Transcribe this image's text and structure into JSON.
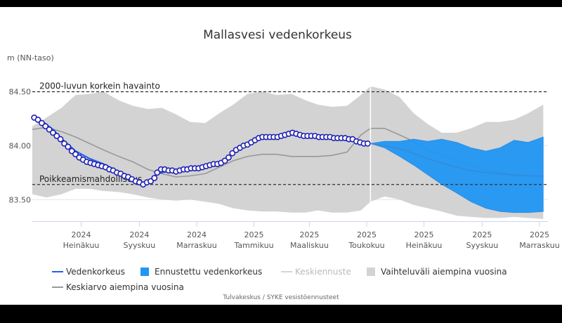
{
  "chart_data": {
    "type": "area",
    "title": "Mallasvesi vedenkorkeus",
    "ylabel": "m (NN-taso)",
    "ylim": [
      83.3,
      84.66
    ],
    "y_ticks": [
      "84.50",
      "84.00",
      "83.50"
    ],
    "x_ticks": [
      {
        "year": "2024",
        "month": "Heinäkuu"
      },
      {
        "year": "2024",
        "month": "Syyskuu"
      },
      {
        "year": "2024",
        "month": "Marraskuu"
      },
      {
        "year": "2025",
        "month": "Tammikuu"
      },
      {
        "year": "2025",
        "month": "Maaliskuu"
      },
      {
        "year": "2025",
        "month": "Toukokuu"
      },
      {
        "year": "2025",
        "month": "Heinäkuu"
      },
      {
        "year": "2025",
        "month": "Syyskuu"
      },
      {
        "year": "2025",
        "month": "Marraskuu"
      }
    ],
    "x_ticks_date": [
      "2024-07-01",
      "2024-09-01",
      "2024-11-01",
      "2025-01-01",
      "2025-03-01",
      "2025-05-01",
      "2025-07-01",
      "2025-09-01",
      "2025-11-01"
    ],
    "x_range": [
      "2024-05-10",
      "2025-11-10"
    ],
    "today": "2025-05-05",
    "reference_lines": [
      {
        "label": "2000-luvun korkein havainto",
        "value": 84.5
      },
      {
        "label": "Poikkeamismahdollisuus",
        "value": 83.64
      }
    ],
    "grid": true,
    "legend_position": "bottom",
    "series": [
      {
        "name": "Vaihteluväli aiempina vuosina",
        "kind": "range",
        "color": "#d3d3d3",
        "data": [
          [
            "2024-05-10",
            83.55,
            84.18
          ],
          [
            "2024-05-25",
            83.52,
            84.26
          ],
          [
            "2024-06-10",
            83.55,
            84.35
          ],
          [
            "2024-06-25",
            83.6,
            84.47
          ],
          [
            "2024-07-10",
            83.6,
            84.48
          ],
          [
            "2024-07-25",
            83.58,
            84.5
          ],
          [
            "2024-08-10",
            83.57,
            84.42
          ],
          [
            "2024-08-25",
            83.55,
            84.37
          ],
          [
            "2024-09-10",
            83.52,
            84.34
          ],
          [
            "2024-09-25",
            83.5,
            84.35
          ],
          [
            "2024-10-10",
            83.49,
            84.29
          ],
          [
            "2024-10-25",
            83.5,
            84.22
          ],
          [
            "2024-11-10",
            83.48,
            84.21
          ],
          [
            "2024-11-25",
            83.46,
            84.3
          ],
          [
            "2024-12-10",
            83.42,
            84.38
          ],
          [
            "2024-12-25",
            83.4,
            84.48
          ],
          [
            "2025-01-10",
            83.39,
            84.5
          ],
          [
            "2025-01-25",
            83.39,
            84.47
          ],
          [
            "2025-02-10",
            83.38,
            84.48
          ],
          [
            "2025-02-25",
            83.38,
            84.42
          ],
          [
            "2025-03-10",
            83.4,
            84.38
          ],
          [
            "2025-03-25",
            83.38,
            84.36
          ],
          [
            "2025-04-10",
            83.38,
            84.37
          ],
          [
            "2025-04-25",
            83.4,
            84.47
          ],
          [
            "2025-05-05",
            83.48,
            84.55
          ],
          [
            "2025-05-20",
            83.53,
            84.52
          ],
          [
            "2025-06-05",
            83.5,
            84.45
          ],
          [
            "2025-06-20",
            83.45,
            84.3
          ],
          [
            "2025-07-05",
            83.42,
            84.2
          ],
          [
            "2025-07-20",
            83.39,
            84.12
          ],
          [
            "2025-08-05",
            83.35,
            84.12
          ],
          [
            "2025-08-20",
            83.34,
            84.16
          ],
          [
            "2025-09-05",
            83.33,
            84.22
          ],
          [
            "2025-09-20",
            83.33,
            84.22
          ],
          [
            "2025-10-05",
            83.34,
            84.24
          ],
          [
            "2025-10-20",
            83.33,
            84.3
          ],
          [
            "2025-11-05",
            83.32,
            84.38
          ]
        ]
      },
      {
        "name": "Keskiarvo aiempina vuosina",
        "kind": "line",
        "color": "#999999",
        "data": [
          [
            "2024-05-10",
            84.15
          ],
          [
            "2024-05-25",
            84.17
          ],
          [
            "2024-06-10",
            84.13
          ],
          [
            "2024-06-25",
            84.08
          ],
          [
            "2024-07-10",
            84.02
          ],
          [
            "2024-07-25",
            83.96
          ],
          [
            "2024-08-10",
            83.9
          ],
          [
            "2024-08-25",
            83.85
          ],
          [
            "2024-09-10",
            83.78
          ],
          [
            "2024-09-25",
            83.74
          ],
          [
            "2024-10-10",
            83.71
          ],
          [
            "2024-10-25",
            83.72
          ],
          [
            "2024-11-10",
            83.74
          ],
          [
            "2024-11-25",
            83.8
          ],
          [
            "2024-12-10",
            83.86
          ],
          [
            "2024-12-25",
            83.9
          ],
          [
            "2025-01-10",
            83.92
          ],
          [
            "2025-01-25",
            83.92
          ],
          [
            "2025-02-10",
            83.9
          ],
          [
            "2025-02-25",
            83.9
          ],
          [
            "2025-03-10",
            83.9
          ],
          [
            "2025-03-25",
            83.91
          ],
          [
            "2025-04-10",
            83.94
          ],
          [
            "2025-04-25",
            84.1
          ],
          [
            "2025-05-05",
            84.16
          ],
          [
            "2025-05-20",
            84.16
          ],
          [
            "2025-06-05",
            84.1
          ],
          [
            "2025-06-20",
            84.04
          ],
          [
            "2025-07-05",
            83.96
          ],
          [
            "2025-07-20",
            83.92
          ],
          [
            "2025-08-05",
            83.86
          ],
          [
            "2025-08-20",
            83.82
          ],
          [
            "2025-09-05",
            83.77
          ],
          [
            "2025-09-20",
            83.75
          ],
          [
            "2025-10-05",
            83.72
          ],
          [
            "2025-10-20",
            83.72
          ],
          [
            "2025-11-05",
            83.71
          ]
        ]
      },
      {
        "name": "Ennustettu vedenkorkeus",
        "kind": "range",
        "color": "#2196f3",
        "data": [
          [
            "2025-05-05",
            84.02,
            84.02
          ],
          [
            "2025-05-20",
            83.98,
            84.04
          ],
          [
            "2025-06-05",
            83.9,
            84.04
          ],
          [
            "2025-06-20",
            83.82,
            84.06
          ],
          [
            "2025-07-05",
            83.73,
            84.04
          ],
          [
            "2025-07-20",
            83.64,
            84.06
          ],
          [
            "2025-08-05",
            83.56,
            84.03
          ],
          [
            "2025-08-20",
            83.48,
            83.98
          ],
          [
            "2025-09-05",
            83.42,
            83.95
          ],
          [
            "2025-09-20",
            83.39,
            83.98
          ],
          [
            "2025-10-05",
            83.38,
            84.05
          ],
          [
            "2025-10-20",
            83.38,
            84.03
          ],
          [
            "2025-11-05",
            83.39,
            84.08
          ]
        ]
      },
      {
        "name": "Keskiennuste",
        "kind": "line",
        "color": "#bbbbbb",
        "data": [
          [
            "2025-05-05",
            84.02
          ],
          [
            "2025-05-20",
            84.0
          ],
          [
            "2025-06-05",
            83.97
          ],
          [
            "2025-06-20",
            83.93
          ],
          [
            "2025-07-05",
            83.88
          ],
          [
            "2025-07-20",
            83.84
          ],
          [
            "2025-08-05",
            83.8
          ],
          [
            "2025-08-20",
            83.77
          ],
          [
            "2025-09-05",
            83.75
          ],
          [
            "2025-09-20",
            83.74
          ],
          [
            "2025-10-05",
            83.73
          ],
          [
            "2025-10-20",
            83.72
          ],
          [
            "2025-11-05",
            83.72
          ]
        ]
      },
      {
        "name": "Vedenkorkeus",
        "kind": "line",
        "color": "#1e63e9",
        "data": [
          [
            "2024-05-12",
            84.26
          ],
          [
            "2024-05-20",
            84.23
          ],
          [
            "2024-06-01",
            84.15
          ],
          [
            "2024-06-12",
            84.05
          ],
          [
            "2024-06-25",
            83.95
          ],
          [
            "2024-07-10",
            83.88
          ],
          [
            "2024-07-25",
            83.83
          ],
          [
            "2024-08-10",
            83.76
          ],
          [
            "2024-08-25",
            83.7
          ],
          [
            "2024-09-05",
            83.65
          ],
          [
            "2024-09-15",
            83.68
          ],
          [
            "2024-09-20",
            83.74
          ],
          [
            "2024-10-05",
            83.77
          ],
          [
            "2024-10-20",
            83.77
          ],
          [
            "2024-11-05",
            83.79
          ],
          [
            "2024-11-20",
            83.82
          ],
          [
            "2024-12-05",
            83.9
          ],
          [
            "2024-12-20",
            84.0
          ],
          [
            "2025-01-05",
            84.07
          ],
          [
            "2025-01-20",
            84.08
          ],
          [
            "2025-02-05",
            84.1
          ],
          [
            "2025-02-20",
            84.1
          ],
          [
            "2025-03-05",
            84.09
          ],
          [
            "2025-03-20",
            84.08
          ],
          [
            "2025-04-05",
            84.07
          ],
          [
            "2025-04-20",
            84.05
          ],
          [
            "2025-05-05",
            84.02
          ]
        ]
      },
      {
        "name": "Havainnot",
        "kind": "points",
        "color": "#1f1fb4",
        "data": [
          [
            "2024-05-12",
            84.26
          ],
          [
            "2024-05-16",
            84.24
          ],
          [
            "2024-05-20",
            84.21
          ],
          [
            "2024-05-24",
            84.18
          ],
          [
            "2024-05-28",
            84.15
          ],
          [
            "2024-06-01",
            84.12
          ],
          [
            "2024-06-05",
            84.09
          ],
          [
            "2024-06-09",
            84.06
          ],
          [
            "2024-06-13",
            84.02
          ],
          [
            "2024-06-17",
            83.99
          ],
          [
            "2024-06-21",
            83.95
          ],
          [
            "2024-06-25",
            83.92
          ],
          [
            "2024-06-29",
            83.89
          ],
          [
            "2024-07-03",
            83.87
          ],
          [
            "2024-07-07",
            83.85
          ],
          [
            "2024-07-11",
            83.84
          ],
          [
            "2024-07-15",
            83.83
          ],
          [
            "2024-07-19",
            83.82
          ],
          [
            "2024-07-23",
            83.81
          ],
          [
            "2024-07-27",
            83.8
          ],
          [
            "2024-07-31",
            83.78
          ],
          [
            "2024-08-04",
            83.77
          ],
          [
            "2024-08-08",
            83.75
          ],
          [
            "2024-08-12",
            83.74
          ],
          [
            "2024-08-16",
            83.72
          ],
          [
            "2024-08-20",
            83.71
          ],
          [
            "2024-08-24",
            83.69
          ],
          [
            "2024-08-28",
            83.67
          ],
          [
            "2024-09-01",
            83.66
          ],
          [
            "2024-09-05",
            83.64
          ],
          [
            "2024-09-09",
            83.66
          ],
          [
            "2024-09-13",
            83.67
          ],
          [
            "2024-09-17",
            83.7
          ],
          [
            "2024-09-20",
            83.75
          ],
          [
            "2024-09-24",
            83.78
          ],
          [
            "2024-09-28",
            83.78
          ],
          [
            "2024-10-02",
            83.77
          ],
          [
            "2024-10-06",
            83.77
          ],
          [
            "2024-10-10",
            83.76
          ],
          [
            "2024-10-14",
            83.77
          ],
          [
            "2024-10-18",
            83.78
          ],
          [
            "2024-10-22",
            83.78
          ],
          [
            "2024-10-26",
            83.79
          ],
          [
            "2024-10-30",
            83.79
          ],
          [
            "2024-11-03",
            83.79
          ],
          [
            "2024-11-07",
            83.8
          ],
          [
            "2024-11-11",
            83.81
          ],
          [
            "2024-11-15",
            83.82
          ],
          [
            "2024-11-19",
            83.83
          ],
          [
            "2024-11-23",
            83.83
          ],
          [
            "2024-11-27",
            83.84
          ],
          [
            "2024-12-01",
            83.86
          ],
          [
            "2024-12-05",
            83.89
          ],
          [
            "2024-12-09",
            83.93
          ],
          [
            "2024-12-13",
            83.96
          ],
          [
            "2024-12-17",
            83.98
          ],
          [
            "2024-12-21",
            84.0
          ],
          [
            "2024-12-25",
            84.01
          ],
          [
            "2024-12-29",
            84.03
          ],
          [
            "2025-01-02",
            84.05
          ],
          [
            "2025-01-06",
            84.07
          ],
          [
            "2025-01-10",
            84.08
          ],
          [
            "2025-01-14",
            84.08
          ],
          [
            "2025-01-18",
            84.08
          ],
          [
            "2025-01-22",
            84.08
          ],
          [
            "2025-01-26",
            84.08
          ],
          [
            "2025-01-30",
            84.09
          ],
          [
            "2025-02-03",
            84.1
          ],
          [
            "2025-02-07",
            84.11
          ],
          [
            "2025-02-11",
            84.12
          ],
          [
            "2025-02-15",
            84.11
          ],
          [
            "2025-02-19",
            84.1
          ],
          [
            "2025-02-23",
            84.09
          ],
          [
            "2025-02-27",
            84.09
          ],
          [
            "2025-03-03",
            84.09
          ],
          [
            "2025-03-07",
            84.09
          ],
          [
            "2025-03-11",
            84.08
          ],
          [
            "2025-03-15",
            84.08
          ],
          [
            "2025-03-19",
            84.08
          ],
          [
            "2025-03-23",
            84.08
          ],
          [
            "2025-03-27",
            84.07
          ],
          [
            "2025-03-31",
            84.07
          ],
          [
            "2025-04-04",
            84.07
          ],
          [
            "2025-04-08",
            84.07
          ],
          [
            "2025-04-12",
            84.06
          ],
          [
            "2025-04-16",
            84.06
          ],
          [
            "2025-04-20",
            84.04
          ],
          [
            "2025-04-24",
            84.03
          ],
          [
            "2025-04-28",
            84.02
          ],
          [
            "2025-05-02",
            84.02
          ]
        ]
      }
    ]
  },
  "legend": [
    {
      "label": "Vedenkorkeus",
      "swatch": "line",
      "color": "#1e63e9",
      "muted": false
    },
    {
      "label": "Ennustettu vedenkorkeus",
      "swatch": "box",
      "color": "#2196f3",
      "muted": false
    },
    {
      "label": "Keskiennuste",
      "swatch": "line",
      "color": "#d5d5d5",
      "muted": true
    },
    {
      "label": "Vaihteluväli aiempina vuosina",
      "swatch": "box",
      "color": "#d3d3d3",
      "muted": false
    },
    {
      "label": "Keskiarvo aiempina vuosina",
      "swatch": "line",
      "color": "#999999",
      "muted": false
    }
  ],
  "credits": "Tulvakeskus / SYKE vesistöennusteet"
}
